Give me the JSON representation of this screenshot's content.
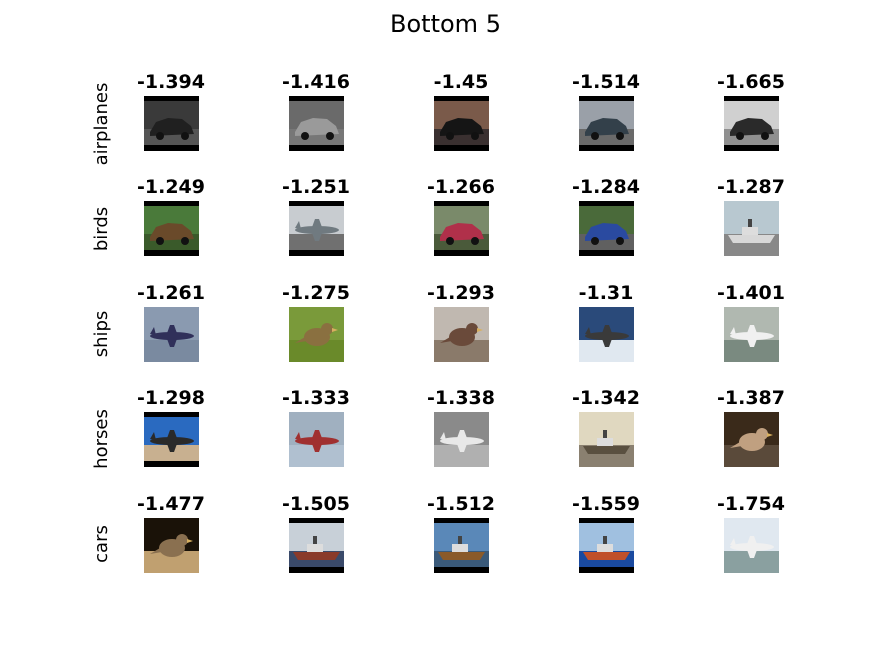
{
  "title": "Bottom 5",
  "chart_data": {
    "type": "table",
    "title": "Bottom 5",
    "rows": [
      "airplanes",
      "birds",
      "ships",
      "horses",
      "cars"
    ],
    "scores": [
      [
        "-1.394",
        "-1.416",
        "-1.45",
        "-1.514",
        "-1.665"
      ],
      [
        "-1.249",
        "-1.251",
        "-1.266",
        "-1.284",
        "-1.287"
      ],
      [
        "-1.261",
        "-1.275",
        "-1.293",
        "-1.31",
        "-1.401"
      ],
      [
        "-1.298",
        "-1.333",
        "-1.338",
        "-1.342",
        "-1.387"
      ],
      [
        "-1.477",
        "-1.505",
        "-1.512",
        "-1.559",
        "-1.754"
      ]
    ],
    "images": [
      [
        {
          "subject": "car",
          "sky": "#3a3a3a",
          "ground": "#555555",
          "obj": "#202020",
          "bars": true
        },
        {
          "subject": "car",
          "sky": "#6a6a6a",
          "ground": "#777777",
          "obj": "#9a9a9a",
          "bars": true
        },
        {
          "subject": "car",
          "sky": "#7a5a4a",
          "ground": "#3a3030",
          "obj": "#151515",
          "bars": true
        },
        {
          "subject": "car",
          "sky": "#9aa0a8",
          "ground": "#6a6a6a",
          "obj": "#33404a",
          "bars": true
        },
        {
          "subject": "car",
          "sky": "#d0d0d0",
          "ground": "#909090",
          "obj": "#2a2a2a",
          "bars": true
        }
      ],
      [
        {
          "subject": "car",
          "sky": "#4a7a3a",
          "ground": "#3a5a2a",
          "obj": "#6a4a2a",
          "bars": true
        },
        {
          "subject": "plane",
          "sky": "#c8ccd0",
          "ground": "#707070",
          "obj": "#707a80",
          "bars": true
        },
        {
          "subject": "car",
          "sky": "#7a8a6a",
          "ground": "#4a5a3a",
          "obj": "#b0304a",
          "bars": true
        },
        {
          "subject": "car",
          "sky": "#4a6a3a",
          "ground": "#606060",
          "obj": "#2a4aa0",
          "bars": true
        },
        {
          "subject": "ship",
          "sky": "#b8c8d0",
          "ground": "#888888",
          "obj": "#d8d8d8",
          "bars": false
        }
      ],
      [
        {
          "subject": "plane",
          "sky": "#8a9ab0",
          "ground": "#7a8aa0",
          "obj": "#30305a",
          "bars": false
        },
        {
          "subject": "bird",
          "sky": "#7a9a3a",
          "ground": "#6a8a2a",
          "obj": "#8a7040",
          "bars": false
        },
        {
          "subject": "bird",
          "sky": "#c0b8b0",
          "ground": "#8a7a6a",
          "obj": "#6a4a3a",
          "bars": false
        },
        {
          "subject": "plane",
          "sky": "#2a4a7a",
          "ground": "#e0e8f0",
          "obj": "#3a3a3a",
          "bars": false
        },
        {
          "subject": "plane",
          "sky": "#b0b8b0",
          "ground": "#7a8a80",
          "obj": "#f0f0f0",
          "bars": false
        }
      ],
      [
        {
          "subject": "plane",
          "sky": "#2a6ac0",
          "ground": "#c8b090",
          "obj": "#2a2a2a",
          "bars": true
        },
        {
          "subject": "plane",
          "sky": "#a0b0c0",
          "ground": "#b0c0d0",
          "obj": "#a03030",
          "bars": false
        },
        {
          "subject": "plane",
          "sky": "#8a8a8a",
          "ground": "#b0b0b0",
          "obj": "#e8e8e8",
          "bars": false
        },
        {
          "subject": "ship",
          "sky": "#e0d8c0",
          "ground": "#8a8070",
          "obj": "#5a5040",
          "bars": false
        },
        {
          "subject": "bird",
          "sky": "#3a2a1a",
          "ground": "#5a4a3a",
          "obj": "#c0a080",
          "bars": false
        }
      ],
      [
        {
          "subject": "bird",
          "sky": "#1a1208",
          "ground": "#c0a070",
          "obj": "#8a7050",
          "bars": false
        },
        {
          "subject": "ship",
          "sky": "#c8d0d8",
          "ground": "#3a4a6a",
          "obj": "#8a3a2a",
          "bars": true
        },
        {
          "subject": "ship",
          "sky": "#5a88b8",
          "ground": "#3a5a7a",
          "obj": "#8a5a2a",
          "bars": true
        },
        {
          "subject": "ship",
          "sky": "#a0c0e0",
          "ground": "#1a4aa0",
          "obj": "#c0502a",
          "bars": true
        },
        {
          "subject": "plane",
          "sky": "#e0e8f0",
          "ground": "#8aa0a0",
          "obj": "#f0f0f0",
          "bars": false
        }
      ]
    ]
  }
}
